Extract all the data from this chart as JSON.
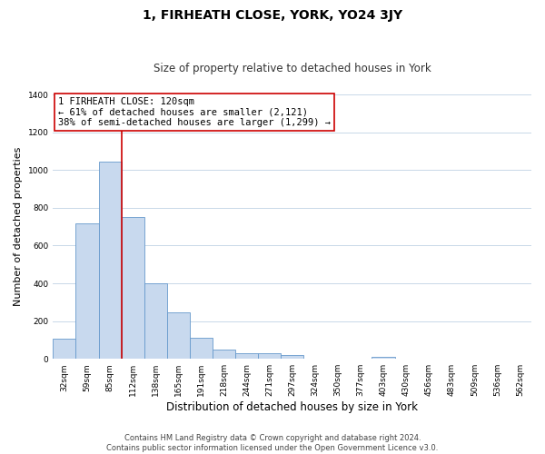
{
  "title": "1, FIRHEATH CLOSE, YORK, YO24 3JY",
  "subtitle": "Size of property relative to detached houses in York",
  "xlabel": "Distribution of detached houses by size in York",
  "ylabel": "Number of detached properties",
  "categories": [
    "32sqm",
    "59sqm",
    "85sqm",
    "112sqm",
    "138sqm",
    "165sqm",
    "191sqm",
    "218sqm",
    "244sqm",
    "271sqm",
    "297sqm",
    "324sqm",
    "350sqm",
    "377sqm",
    "403sqm",
    "430sqm",
    "456sqm",
    "483sqm",
    "509sqm",
    "536sqm",
    "562sqm"
  ],
  "values": [
    105,
    715,
    1045,
    750,
    400,
    245,
    110,
    48,
    28,
    28,
    20,
    0,
    0,
    0,
    12,
    0,
    0,
    0,
    0,
    0,
    0
  ],
  "bar_color": "#c8d9ee",
  "bar_edge_color": "#6699cc",
  "vline_color": "#cc0000",
  "vline_x_index": 2.5,
  "annotation_text": "1 FIRHEATH CLOSE: 120sqm\n← 61% of detached houses are smaller (2,121)\n38% of semi-detached houses are larger (1,299) →",
  "annotation_box_color": "#ffffff",
  "annotation_box_edge": "#cc0000",
  "ylim": [
    0,
    1400
  ],
  "yticks": [
    0,
    200,
    400,
    600,
    800,
    1000,
    1200,
    1400
  ],
  "footer_line1": "Contains HM Land Registry data © Crown copyright and database right 2024.",
  "footer_line2": "Contains public sector information licensed under the Open Government Licence v3.0.",
  "bg_color": "#ffffff",
  "grid_color": "#c8d8e8",
  "title_fontsize": 10,
  "subtitle_fontsize": 8.5,
  "footer_fontsize": 6,
  "ylabel_fontsize": 8,
  "xlabel_fontsize": 8.5,
  "tick_fontsize": 6.5,
  "annotation_fontsize": 7.5
}
